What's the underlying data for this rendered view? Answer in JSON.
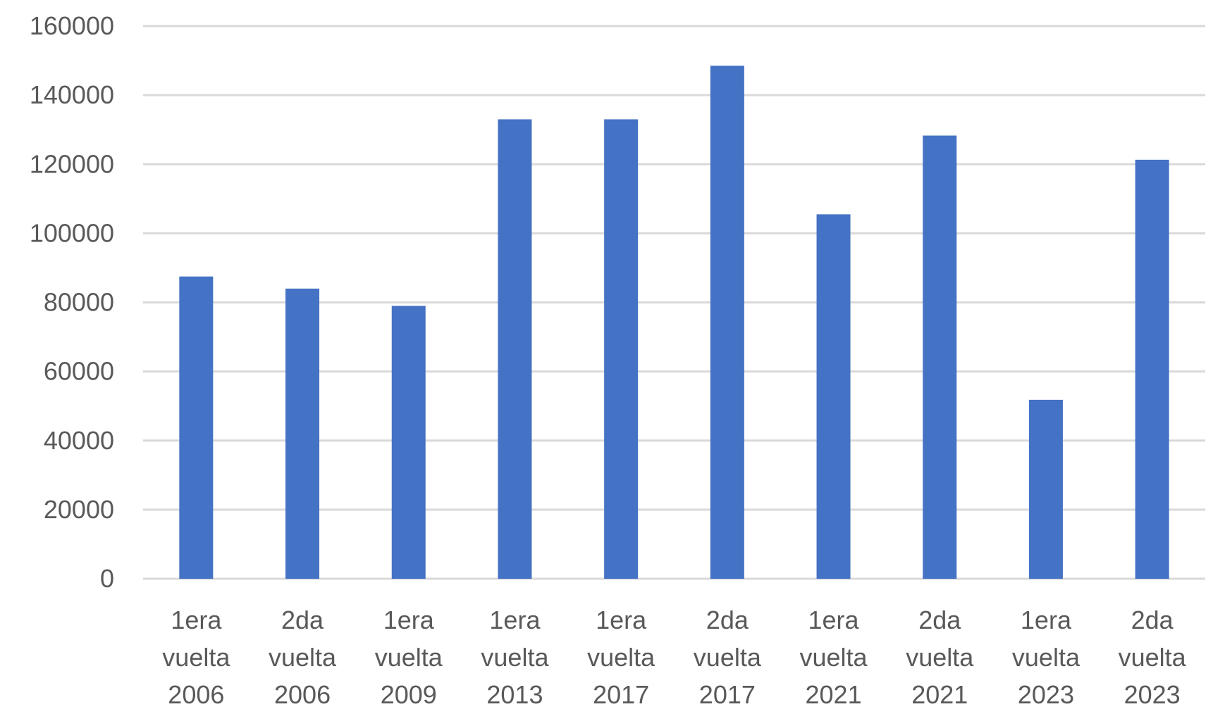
{
  "chart_data": {
    "type": "bar",
    "title": "",
    "xlabel": "",
    "ylabel": "",
    "categories": [
      [
        "1era",
        "vuelta",
        "2006"
      ],
      [
        "2da",
        "vuelta",
        "2006"
      ],
      [
        "1era",
        "vuelta",
        "2009"
      ],
      [
        "1era",
        "vuelta",
        "2013"
      ],
      [
        "1era",
        "vuelta",
        "2017"
      ],
      [
        "2da",
        "vuelta",
        "2017"
      ],
      [
        "1era",
        "vuelta",
        "2021"
      ],
      [
        "2da",
        "vuelta",
        "2021"
      ],
      [
        "1era",
        "vuelta",
        "2023"
      ],
      [
        "2da",
        "vuelta",
        "2023"
      ]
    ],
    "series": [
      {
        "color": "#4472c4",
        "values": [
          87500,
          84000,
          79000,
          133000,
          133000,
          148500,
          105500,
          128300,
          51800,
          121300
        ]
      }
    ],
    "ylim": [
      0,
      160000
    ],
    "yticks": [
      "0",
      "20000",
      "40000",
      "60000",
      "80000",
      "100000",
      "120000",
      "140000",
      "160000"
    ],
    "grid": true,
    "legend": "none"
  }
}
